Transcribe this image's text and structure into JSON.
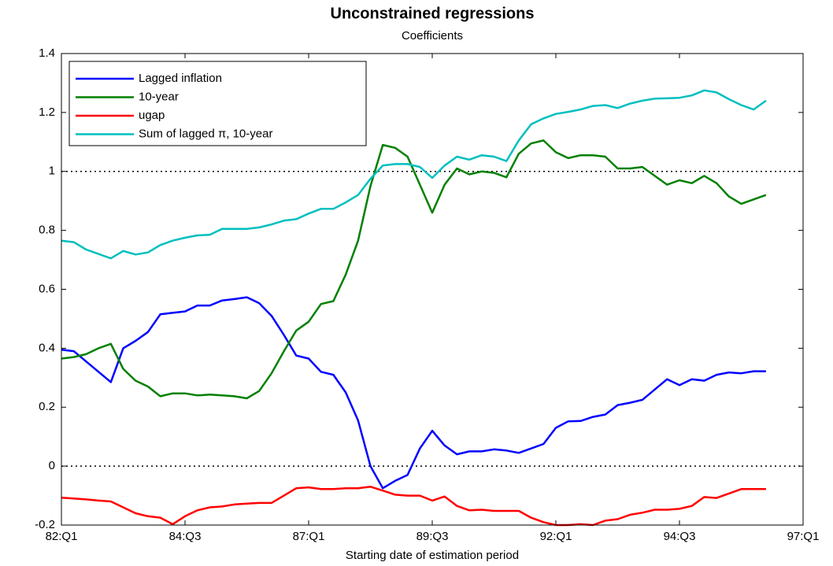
{
  "chart_data": {
    "type": "line",
    "title": "Unconstrained regressions",
    "subtitle": "Coefficients",
    "x_label": "Starting date of estimation period",
    "categories": [
      "82:Q1",
      null,
      null,
      null,
      null,
      null,
      null,
      null,
      null,
      null,
      "84:Q3",
      null,
      null,
      null,
      null,
      null,
      null,
      null,
      null,
      null,
      "87:Q1",
      null,
      null,
      null,
      null,
      null,
      null,
      null,
      null,
      null,
      "89:Q3",
      null,
      null,
      null,
      null,
      null,
      null,
      null,
      null,
      null,
      "92:Q1",
      null,
      null,
      null,
      null,
      null,
      null,
      null,
      null,
      null,
      "94:Q3",
      null,
      null,
      null,
      null,
      null,
      null,
      null,
      null,
      null,
      "97:Q1"
    ],
    "series": [
      {
        "name": "Lagged inflation",
        "color": "#0000ff",
        "values": [
          0.395,
          0.39,
          0.355,
          0.32,
          0.285,
          0.4,
          0.425,
          0.455,
          0.515,
          0.52,
          0.525,
          0.545,
          0.545,
          0.562,
          0.567,
          0.573,
          0.553,
          0.51,
          0.445,
          0.375,
          0.365,
          0.32,
          0.31,
          0.25,
          0.155,
          0.0,
          -0.075,
          -0.05,
          -0.03,
          0.06,
          0.12,
          0.07,
          0.04,
          0.05,
          0.05,
          0.057,
          0.053,
          0.045,
          0.06,
          0.075,
          0.13,
          0.152,
          0.153,
          0.167,
          0.175,
          0.207,
          0.215,
          0.225,
          0.26,
          0.295,
          0.275,
          0.295,
          0.29,
          0.31,
          0.318,
          0.315,
          0.322,
          0.322,
          null,
          null,
          null
        ]
      },
      {
        "name": "10-year",
        "color": "#008000",
        "values": [
          0.365,
          0.37,
          0.38,
          0.4,
          0.415,
          0.33,
          0.29,
          0.27,
          0.237,
          0.247,
          0.247,
          0.24,
          0.243,
          0.24,
          0.237,
          0.23,
          0.255,
          0.315,
          0.39,
          0.46,
          0.49,
          0.55,
          0.56,
          0.65,
          0.765,
          0.95,
          1.09,
          1.08,
          1.05,
          0.955,
          0.86,
          0.955,
          1.01,
          0.99,
          1.0,
          0.995,
          0.98,
          1.06,
          1.095,
          1.105,
          1.065,
          1.045,
          1.055,
          1.055,
          1.05,
          1.01,
          1.01,
          1.015,
          0.985,
          0.955,
          0.97,
          0.96,
          0.985,
          0.96,
          0.915,
          0.89,
          0.905,
          0.92,
          null,
          null,
          null
        ]
      },
      {
        "name": "ugap",
        "color": "#ff0000",
        "values": [
          -0.107,
          -0.11,
          -0.113,
          -0.117,
          -0.12,
          -0.14,
          -0.16,
          -0.17,
          -0.175,
          -0.197,
          -0.17,
          -0.15,
          -0.14,
          -0.137,
          -0.13,
          -0.127,
          -0.125,
          -0.125,
          -0.1,
          -0.075,
          -0.072,
          -0.078,
          -0.078,
          -0.075,
          -0.075,
          -0.07,
          -0.083,
          -0.097,
          -0.1,
          -0.1,
          -0.117,
          -0.103,
          -0.135,
          -0.15,
          -0.148,
          -0.152,
          -0.152,
          -0.152,
          -0.175,
          -0.19,
          -0.2,
          -0.2,
          -0.197,
          -0.2,
          -0.185,
          -0.18,
          -0.165,
          -0.158,
          -0.148,
          -0.148,
          -0.145,
          -0.135,
          -0.105,
          -0.108,
          -0.093,
          -0.078,
          -0.078,
          -0.078,
          null,
          null,
          null
        ]
      },
      {
        "name": "Sum of lagged π, 10-year",
        "color": "#00bfbf",
        "values": [
          0.765,
          0.76,
          0.735,
          0.72,
          0.705,
          0.73,
          0.718,
          0.725,
          0.75,
          0.765,
          0.775,
          0.783,
          0.785,
          0.805,
          0.805,
          0.805,
          0.81,
          0.82,
          0.833,
          0.838,
          0.857,
          0.873,
          0.873,
          0.895,
          0.92,
          0.975,
          1.02,
          1.025,
          1.025,
          1.015,
          0.978,
          1.02,
          1.05,
          1.04,
          1.055,
          1.05,
          1.035,
          1.105,
          1.16,
          1.18,
          1.195,
          1.202,
          1.21,
          1.222,
          1.225,
          1.215,
          1.23,
          1.24,
          1.247,
          1.248,
          1.25,
          1.258,
          1.275,
          1.268,
          1.245,
          1.225,
          1.21,
          1.24,
          null,
          null,
          null
        ]
      }
    ],
    "ylim": [
      -0.2,
      1.4
    ],
    "yticks": [
      -0.2,
      0,
      0.2,
      0.4,
      0.6,
      0.8,
      1,
      1.2,
      1.4
    ],
    "reference_lines": [
      0,
      1
    ],
    "legend": "upper left"
  }
}
